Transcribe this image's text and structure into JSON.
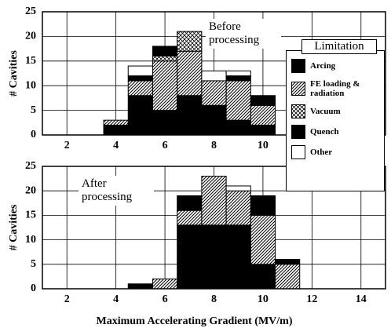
{
  "chart_data": [
    {
      "type": "histogram",
      "ylabel": "# Cavities",
      "annotation": "Before processing",
      "bins": [
        3.5,
        4.5,
        5.5,
        6.5,
        7.5,
        8.5,
        9.5,
        10.5
      ],
      "series": [
        {
          "name": "Arcing",
          "fill": "#000000",
          "values": [
            0,
            1,
            2,
            0,
            0,
            1,
            2
          ]
        },
        {
          "name": "FE loading & radiation",
          "fill": "url(#diag)",
          "values": [
            1,
            3,
            10,
            9,
            5,
            8,
            4
          ]
        },
        {
          "name": "Vacuum",
          "fill": "url(#cross)",
          "values": [
            0,
            0,
            1,
            4,
            0,
            0,
            0
          ]
        },
        {
          "name": "Quench",
          "fill": "#000000",
          "values": [
            2,
            8,
            5,
            8,
            6,
            3,
            2
          ]
        },
        {
          "name": "Other",
          "fill": "#ffffff",
          "values": [
            0,
            2,
            0,
            0,
            2,
            1,
            0
          ]
        }
      ],
      "xlim": [
        1,
        15
      ],
      "ylim": [
        0,
        25
      ],
      "xticks": [
        2,
        4,
        6,
        8,
        10,
        12,
        14
      ],
      "yticks": [
        0,
        5,
        10,
        15,
        20,
        25
      ]
    },
    {
      "type": "histogram",
      "ylabel": "# Cavities",
      "annotation": "After processing",
      "xlabel": "Maximum Accelerating Gradient (MV/m)",
      "bins": [
        4.5,
        5.5,
        6.5,
        7.5,
        8.5,
        9.5,
        10.5,
        11.5
      ],
      "series": [
        {
          "fill": "#000000",
          "values": [
            0,
            0,
            3,
            0,
            0,
            4,
            1
          ]
        },
        {
          "fill": "url(#diag)",
          "values": [
            0,
            2,
            3,
            10,
            7,
            10,
            5
          ]
        },
        {
          "fill": "url(#cross)",
          "values": [
            0,
            0,
            0,
            0,
            0,
            0,
            0
          ]
        },
        {
          "fill": "#000000",
          "values": [
            1,
            0,
            13,
            13,
            13,
            5,
            0
          ]
        },
        {
          "fill": "#ffffff",
          "values": [
            0,
            0,
            0,
            0,
            1,
            0,
            0
          ]
        }
      ],
      "xlim": [
        1,
        15
      ],
      "ylim": [
        0,
        25
      ],
      "xticks": [
        2,
        4,
        6,
        8,
        10,
        12,
        14
      ],
      "yticks": [
        0,
        5,
        10,
        15,
        20,
        25
      ]
    }
  ],
  "legend": {
    "title": "Limitation"
  }
}
